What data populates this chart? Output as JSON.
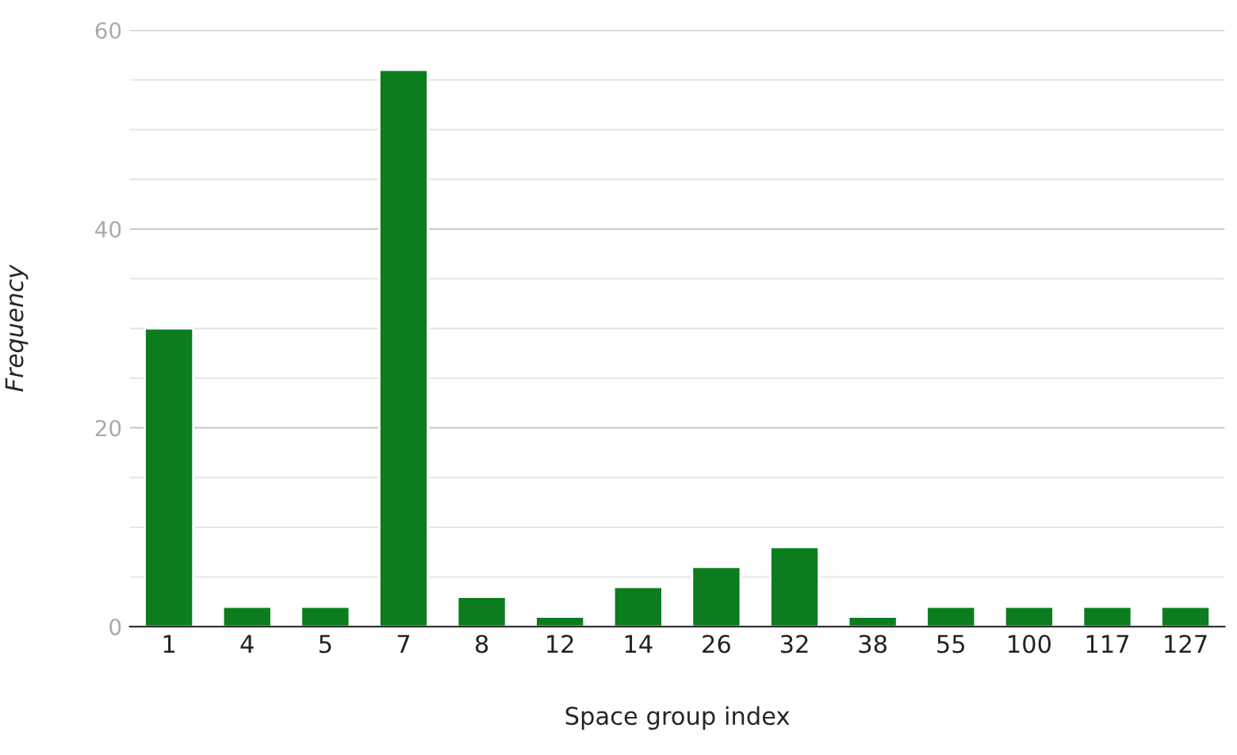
{
  "chart_data": {
    "type": "bar",
    "xlabel": "Space group index",
    "ylabel": "Frequency",
    "categories": [
      "1",
      "4",
      "5",
      "7",
      "8",
      "12",
      "14",
      "26",
      "32",
      "38",
      "55",
      "100",
      "117",
      "127"
    ],
    "values": [
      30,
      2,
      2,
      56,
      3,
      1,
      4,
      6,
      8,
      1,
      2,
      2,
      2,
      2
    ],
    "color": "#0b7d1e",
    "ylim": [
      0,
      60
    ],
    "yticks": [
      0,
      {
        "value": 5,
        "label": null
      },
      {
        "value": 10,
        "label": null
      },
      {
        "value": 15,
        "label": null
      },
      20,
      {
        "value": 25,
        "label": null
      },
      {
        "value": 30,
        "label": null
      },
      {
        "value": 35,
        "label": null
      },
      40,
      {
        "value": 45,
        "label": null
      },
      {
        "value": 50,
        "label": null
      },
      {
        "value": 55,
        "label": null
      },
      60
    ],
    "grid": "y"
  }
}
